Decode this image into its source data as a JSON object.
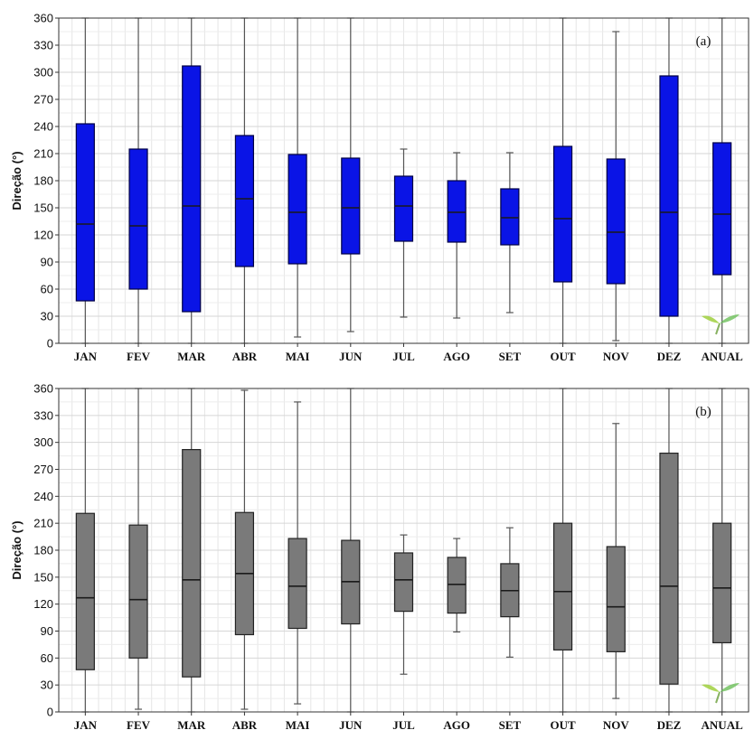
{
  "chart_data": [
    {
      "type": "boxplot",
      "panel_label": "(a)",
      "ylabel": "Direção (°)",
      "ylim": [
        0,
        360
      ],
      "yticks": [
        0,
        30,
        60,
        90,
        120,
        150,
        180,
        210,
        240,
        270,
        300,
        330,
        360
      ],
      "categories": [
        "JAN",
        "FEV",
        "MAR",
        "ABR",
        "MAI",
        "JUN",
        "JUL",
        "AGO",
        "SET",
        "OUT",
        "NOV",
        "DEZ",
        "ANUAL"
      ],
      "box_color": "#0a14e6",
      "box_stroke": "#000044",
      "grid": true,
      "boxes": [
        {
          "min": 0,
          "q1": 47,
          "median": 132,
          "q3": 243,
          "max": 360
        },
        {
          "min": 0,
          "q1": 60,
          "median": 130,
          "q3": 215,
          "max": 360
        },
        {
          "min": 0,
          "q1": 35,
          "median": 152,
          "q3": 307,
          "max": 360
        },
        {
          "min": 0,
          "q1": 85,
          "median": 160,
          "q3": 230,
          "max": 360
        },
        {
          "min": 7,
          "q1": 88,
          "median": 145,
          "q3": 209,
          "max": 360
        },
        {
          "min": 13,
          "q1": 99,
          "median": 150,
          "q3": 205,
          "max": 360
        },
        {
          "min": 29,
          "q1": 113,
          "median": 152,
          "q3": 185,
          "max": 215
        },
        {
          "min": 28,
          "q1": 112,
          "median": 145,
          "q3": 180,
          "max": 211
        },
        {
          "min": 34,
          "q1": 109,
          "median": 139,
          "q3": 171,
          "max": 211
        },
        {
          "min": 0,
          "q1": 68,
          "median": 138,
          "q3": 218,
          "max": 360
        },
        {
          "min": 3,
          "q1": 66,
          "median": 123,
          "q3": 204,
          "max": 345
        },
        {
          "min": 0,
          "q1": 30,
          "median": 145,
          "q3": 296,
          "max": 360
        },
        {
          "min": 0,
          "q1": 76,
          "median": 143,
          "q3": 222,
          "max": 360
        }
      ]
    },
    {
      "type": "boxplot",
      "panel_label": "(b)",
      "ylabel": "Direção (°)",
      "ylim": [
        0,
        360
      ],
      "yticks": [
        0,
        30,
        60,
        90,
        120,
        150,
        180,
        210,
        240,
        270,
        300,
        330,
        360
      ],
      "categories": [
        "JAN",
        "FEV",
        "MAR",
        "ABR",
        "MAI",
        "JUN",
        "JUL",
        "AGO",
        "SET",
        "OUT",
        "NOV",
        "DEZ",
        "ANUAL"
      ],
      "box_color": "#7a7a7a",
      "box_stroke": "#222222",
      "grid": true,
      "boxes": [
        {
          "min": 0,
          "q1": 47,
          "median": 127,
          "q3": 221,
          "max": 360
        },
        {
          "min": 3,
          "q1": 60,
          "median": 125,
          "q3": 208,
          "max": 360
        },
        {
          "min": 0,
          "q1": 39,
          "median": 147,
          "q3": 292,
          "max": 360
        },
        {
          "min": 3,
          "q1": 86,
          "median": 154,
          "q3": 222,
          "max": 358
        },
        {
          "min": 9,
          "q1": 93,
          "median": 140,
          "q3": 193,
          "max": 345
        },
        {
          "min": 0,
          "q1": 98,
          "median": 145,
          "q3": 191,
          "max": 360
        },
        {
          "min": 42,
          "q1": 112,
          "median": 147,
          "q3": 177,
          "max": 197
        },
        {
          "min": 89,
          "q1": 110,
          "median": 142,
          "q3": 172,
          "max": 193
        },
        {
          "min": 61,
          "q1": 106,
          "median": 135,
          "q3": 165,
          "max": 205
        },
        {
          "min": 0,
          "q1": 69,
          "median": 134,
          "q3": 210,
          "max": 360
        },
        {
          "min": 15,
          "q1": 67,
          "median": 117,
          "q3": 184,
          "max": 321
        },
        {
          "min": 0,
          "q1": 31,
          "median": 140,
          "q3": 288,
          "max": 360
        },
        {
          "min": 0,
          "q1": 77,
          "median": 138,
          "q3": 210,
          "max": 360
        }
      ]
    }
  ]
}
